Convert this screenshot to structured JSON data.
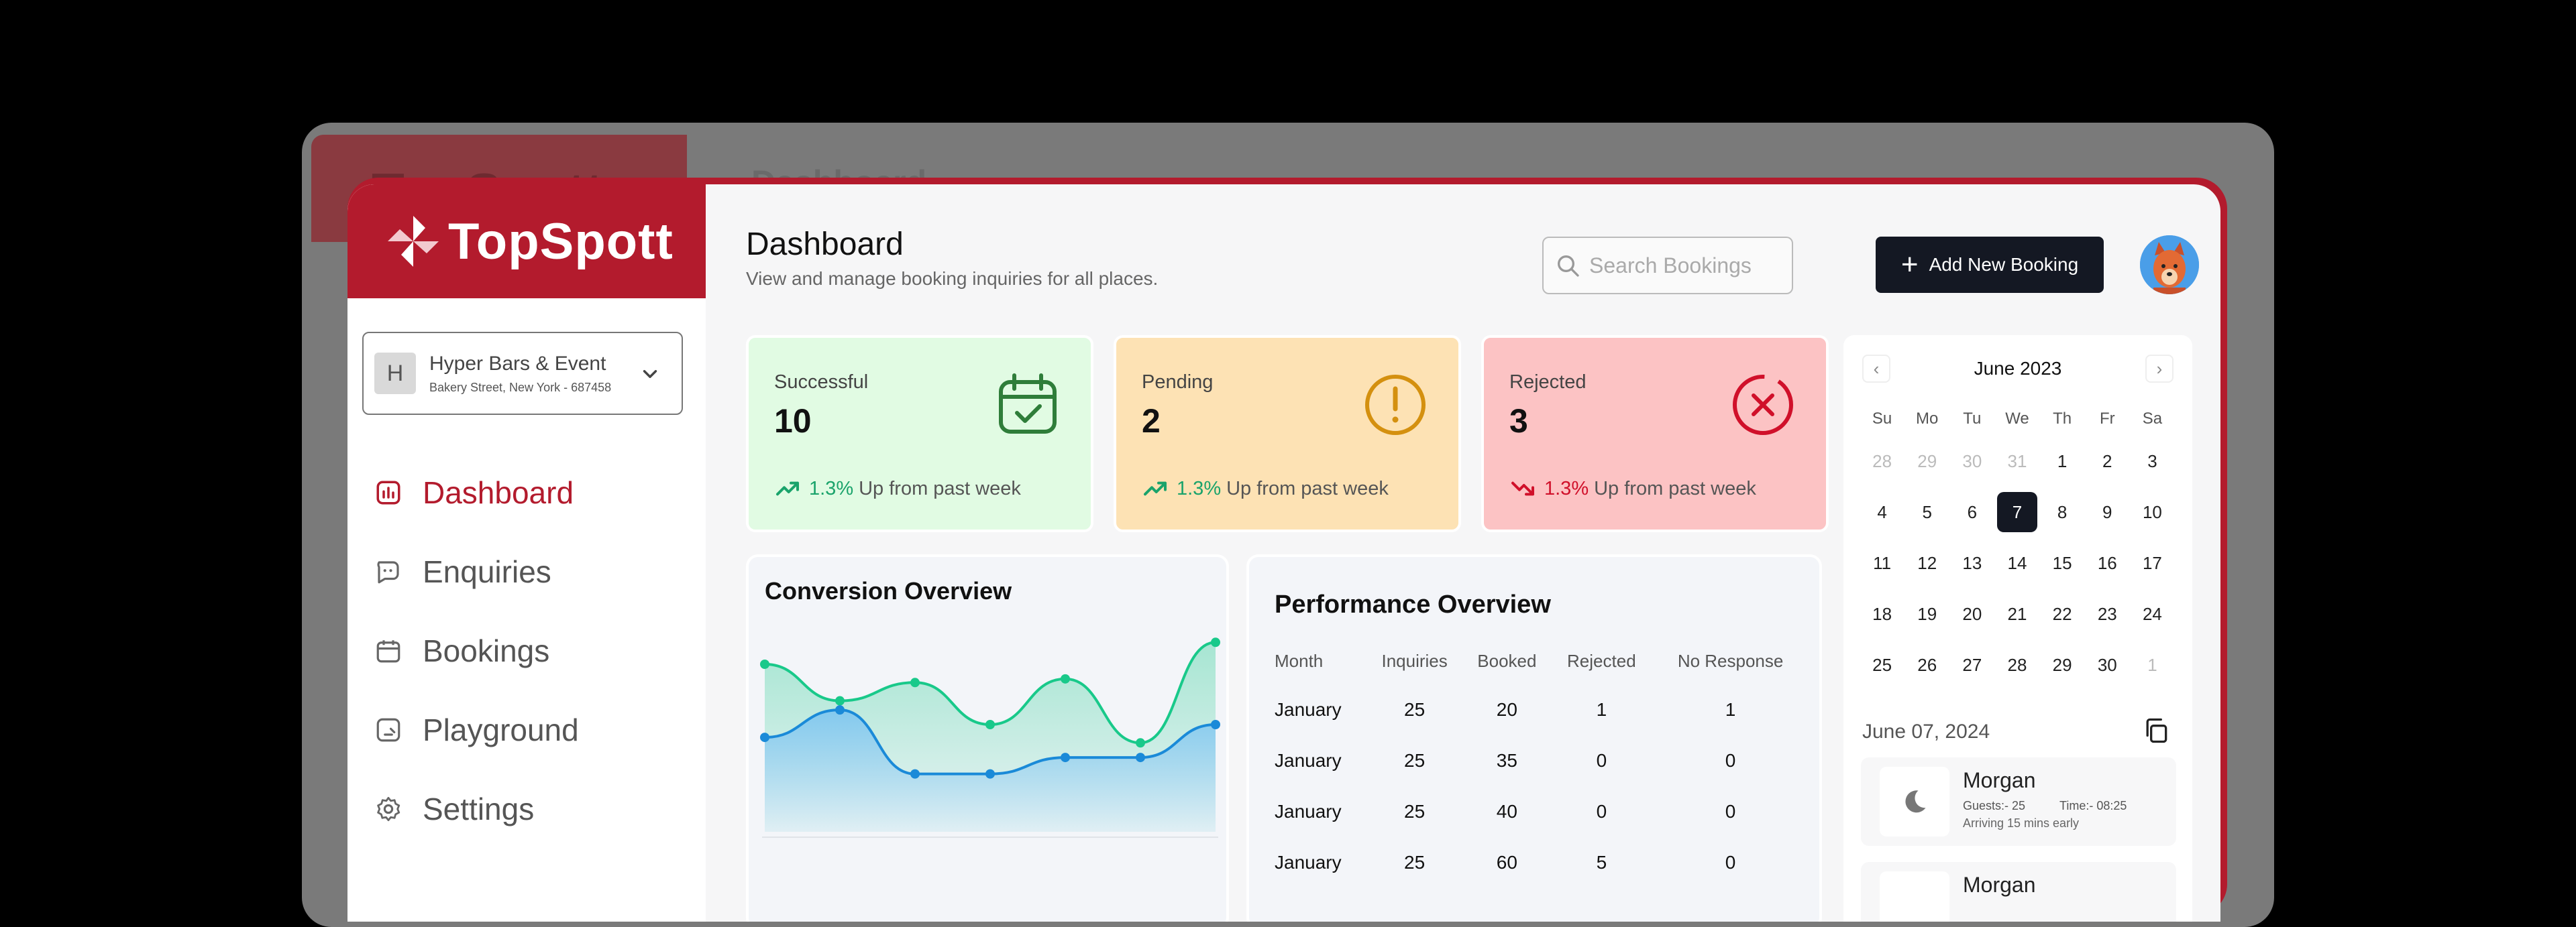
{
  "app": {
    "name": "TopSpott"
  },
  "ghost": {
    "title": "Dashboard"
  },
  "venue": {
    "initial": "H",
    "name": "Hyper Bars & Event",
    "address": "Bakery Street, New York - 687458"
  },
  "nav": [
    {
      "label": "Dashboard",
      "icon": "chart-icon",
      "active": true
    },
    {
      "label": "Enquiries",
      "icon": "chat-icon",
      "active": false
    },
    {
      "label": "Bookings",
      "icon": "calendar-icon",
      "active": false
    },
    {
      "label": "Playground",
      "icon": "playground-icon",
      "active": false
    },
    {
      "label": "Settings",
      "icon": "gear-icon",
      "active": false
    }
  ],
  "header": {
    "title": "Dashboard",
    "subtitle": "View and manage booking inquiries for all places.",
    "search_placeholder": "Search Bookings",
    "add_label": "Add New Booking"
  },
  "stats": [
    {
      "label": "Successful",
      "value": "10",
      "pct": "1.3%",
      "trend_text": "Up from past week",
      "bg": "#e1fbe3",
      "accent": "#2f7d3a"
    },
    {
      "label": "Pending",
      "value": "2",
      "pct": "1.3%",
      "trend_text": "Up from past week",
      "bg": "#fde2b4",
      "accent": "#d4900f"
    },
    {
      "label": "Rejected",
      "value": "3",
      "pct": "1.3%",
      "trend_text": "Up from past week",
      "bg": "#fcc3c4",
      "accent": "#d0102a"
    }
  ],
  "conversion": {
    "title": "Conversion Overview",
    "chart_data": {
      "type": "area",
      "title": "Conversion Overview",
      "x": [
        1,
        2,
        3,
        4,
        5,
        6,
        7
      ],
      "series": [
        {
          "color": "#19c98a",
          "values": [
            88,
            68,
            78,
            55,
            80,
            45,
            100
          ]
        },
        {
          "color": "#1a8ad8",
          "values": [
            48,
            63,
            28,
            28,
            37,
            37,
            55
          ]
        }
      ],
      "ylim": [
        0,
        110
      ]
    }
  },
  "performance": {
    "title": "Performance Overview",
    "columns": [
      "Month",
      "Inquiries",
      "Booked",
      "Rejected",
      "No Response"
    ],
    "rows": [
      [
        "January",
        "25",
        "20",
        "1",
        "1"
      ],
      [
        "January",
        "25",
        "35",
        "0",
        "0"
      ],
      [
        "January",
        "25",
        "40",
        "0",
        "0"
      ],
      [
        "January",
        "25",
        "60",
        "5",
        "0"
      ]
    ]
  },
  "calendar": {
    "month": "June 2023",
    "dow": [
      "Su",
      "Mo",
      "Tu",
      "We",
      "Th",
      "Fr",
      "Sa"
    ],
    "days": [
      {
        "d": "28",
        "muted": true
      },
      {
        "d": "29",
        "muted": true
      },
      {
        "d": "30",
        "muted": true
      },
      {
        "d": "31",
        "muted": true
      },
      {
        "d": "1"
      },
      {
        "d": "2"
      },
      {
        "d": "3"
      },
      {
        "d": "4"
      },
      {
        "d": "5"
      },
      {
        "d": "6"
      },
      {
        "d": "7",
        "selected": true
      },
      {
        "d": "8"
      },
      {
        "d": "9"
      },
      {
        "d": "10"
      },
      {
        "d": "11"
      },
      {
        "d": "12"
      },
      {
        "d": "13"
      },
      {
        "d": "14"
      },
      {
        "d": "15"
      },
      {
        "d": "16"
      },
      {
        "d": "17"
      },
      {
        "d": "18"
      },
      {
        "d": "19"
      },
      {
        "d": "20"
      },
      {
        "d": "21"
      },
      {
        "d": "22"
      },
      {
        "d": "23"
      },
      {
        "d": "24"
      },
      {
        "d": "25"
      },
      {
        "d": "26"
      },
      {
        "d": "27"
      },
      {
        "d": "28"
      },
      {
        "d": "29"
      },
      {
        "d": "30"
      },
      {
        "d": "1",
        "muted": true
      }
    ]
  },
  "schedule": {
    "date": "June 07, 2024",
    "items": [
      {
        "name": "Morgan",
        "guests": "Guests:- 25",
        "time": "Time:- 08:25",
        "note": "Arriving 15 mins early"
      },
      {
        "name": "Morgan",
        "guests": "",
        "time": "",
        "note": ""
      }
    ]
  }
}
